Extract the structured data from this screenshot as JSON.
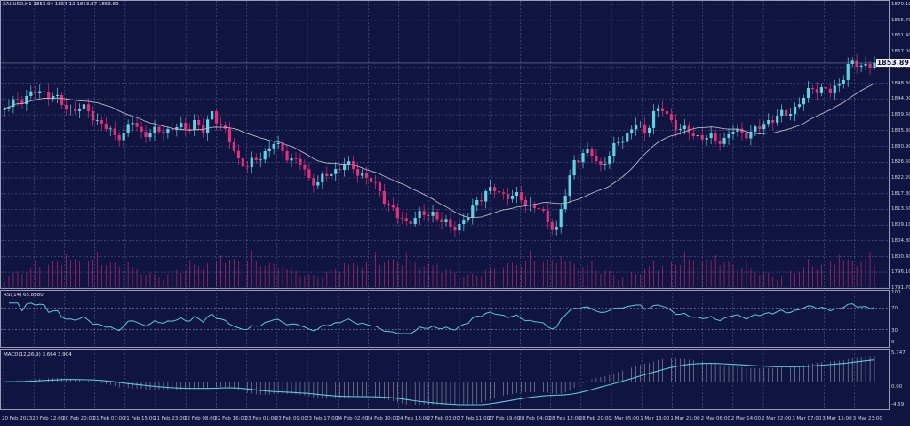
{
  "header": {
    "symbol_info": "XAUUSD,H1  1853.94 1854.12 1853.87 1853.89"
  },
  "rsi_panel": {
    "label": "RSI(14) 65.8880",
    "ticks": [
      "100",
      "70",
      "30",
      "0"
    ]
  },
  "macd_panel": {
    "label": "MACD(12,26,9) 3.664 3.904",
    "ticks": [
      "5.747",
      "0.00",
      "-4.59"
    ]
  },
  "current_price": "1853.89",
  "colors": {
    "background": "#0f1440",
    "bull": "#5fd3df",
    "bear": "#e0307a",
    "moving_average": "#b8b8c8",
    "rsi_line": "#5fc8d8",
    "macd_signal": "#5fc8d8",
    "macd_histogram": "#9a9aae",
    "volume": "#e0307a",
    "grid": "#555b8c"
  },
  "chart_data": {
    "type": "candlestick",
    "symbol": "XAUUSD",
    "timeframe": "H1",
    "price_ticks": [
      "1870.10",
      "1865.70",
      "1861.40",
      "1857.00",
      "1852.70",
      "1848.30",
      "1844.00",
      "1839.60",
      "1835.30",
      "1830.90",
      "1826.50",
      "1822.20",
      "1817.80",
      "1813.50",
      "1809.10",
      "1804.80",
      "1800.40",
      "1796.10",
      "1791.70"
    ],
    "ylim": [
      1791.7,
      1870.1
    ],
    "time_ticks": [
      "20 Feb 2023",
      "20 Feb 12:00",
      "20 Feb 20:00",
      "21 Feb 07:00",
      "21 Feb 15:00",
      "21 Feb 23:00",
      "22 Feb 08:00",
      "22 Feb 16:00",
      "23 Feb 01:00",
      "23 Feb 09:00",
      "23 Feb 17:00",
      "24 Feb 02:00",
      "24 Feb 10:00",
      "24 Feb 18:00",
      "27 Feb 03:00",
      "27 Feb 11:00",
      "27 Feb 19:00",
      "28 Feb 04:00",
      "28 Feb 12:00",
      "28 Feb 20:00",
      "1 Mar 05:00",
      "1 Mar 13:00",
      "1 Mar 21:00",
      "2 Mar 06:00",
      "2 Mar 14:00",
      "2 Mar 22:00",
      "3 Mar 07:00",
      "3 Mar 15:00",
      "3 Mar 23:00"
    ],
    "closes": [
      1841.84,
      1843.56,
      1844.79,
      1845.52,
      1846.01,
      1844.79,
      1842.33,
      1841.34,
      1841.34,
      1840.61,
      1838.15,
      1835.69,
      1833.97,
      1834.46,
      1837.41,
      1834.95,
      1834.46,
      1834.95,
      1835.69,
      1836.18,
      1835.69,
      1838.15,
      1834.46,
      1840.61,
      1836.92,
      1832.01,
      1827.58,
      1825.12,
      1827.09,
      1829.55,
      1831.51,
      1829.55,
      1827.58,
      1825.86,
      1822.17,
      1820.95,
      1822.67,
      1824.63,
      1825.86,
      1824.63,
      1823.4,
      1820.95,
      1818.49,
      1814.8,
      1811.12,
      1810.38,
      1811.12,
      1811.86,
      1812.84,
      1809.89,
      1808.66,
      1809.4,
      1811.12,
      1816.03,
      1818.49,
      1818.49,
      1817.75,
      1817.26,
      1816.03,
      1814.8,
      1813.57,
      1809.89,
      1808.66,
      1817.26,
      1827.09,
      1829.06,
      1828.32,
      1825.86,
      1828.32,
      1832.01,
      1834.46,
      1836.92,
      1834.46,
      1840.61,
      1840.61,
      1838.15,
      1835.69,
      1834.46,
      1833.97,
      1833.23,
      1832.5,
      1833.23,
      1834.95,
      1834.46,
      1834.95,
      1835.69,
      1838.15,
      1839.38,
      1839.38,
      1841.84,
      1844.29,
      1846.75,
      1847.24,
      1845.52,
      1847.98,
      1853.63,
      1852.9,
      1853.63,
      1853.89
    ],
    "indicators": [
      "Moving Average",
      "Volumes",
      "RSI(14)",
      "MACD(12,26,9)"
    ],
    "rsi_ylim": [
      0,
      100
    ],
    "macd_ylim": [
      -4.59,
      5.747
    ],
    "grid": true
  }
}
